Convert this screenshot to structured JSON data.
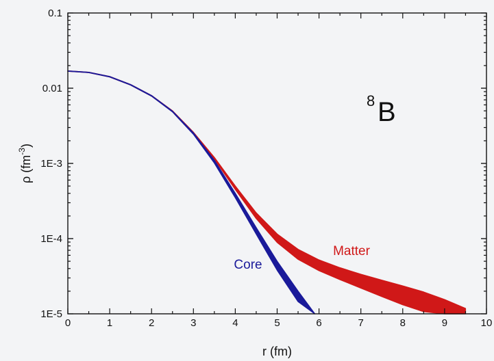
{
  "chart_data": {
    "type": "line",
    "xlabel": "r (fm)",
    "ylabel": {
      "base": "ρ (fm",
      "sup": "-3",
      "close": ")"
    },
    "xlim": [
      0,
      10
    ],
    "ylim": [
      1e-05,
      0.1
    ],
    "yscale": "log",
    "x_ticks": [
      0,
      1,
      2,
      3,
      4,
      5,
      6,
      7,
      8,
      9,
      10
    ],
    "x_tick_labels": [
      "0",
      "1",
      "2",
      "3",
      "4",
      "5",
      "6",
      "7",
      "8",
      "9",
      "10"
    ],
    "y_ticks": [
      1e-05,
      0.0001,
      0.001,
      0.01,
      0.1
    ],
    "y_tick_labels": [
      "1E-5",
      "1E-4",
      "1E-3",
      "0.01",
      "0.1"
    ],
    "grid": false,
    "annotation": {
      "sup": "8",
      "text": "B"
    },
    "series": [
      {
        "name": "Matter",
        "color": "#d01818",
        "band": true,
        "x": [
          0,
          0.5,
          1,
          1.5,
          2,
          2.5,
          3,
          3.5,
          4,
          4.5,
          5,
          5.5,
          6,
          6.5,
          7,
          7.5,
          8,
          8.5,
          9,
          9.5
        ],
        "upper": [
          0.017,
          0.0163,
          0.0143,
          0.0112,
          0.008,
          0.005,
          0.0026,
          0.0012,
          0.0005,
          0.00022,
          0.000115,
          7.2e-05,
          5.2e-05,
          4.1e-05,
          3.35e-05,
          2.8e-05,
          2.35e-05,
          1.95e-05,
          1.55e-05,
          1.18e-05
        ],
        "lower": [
          0.0168,
          0.0161,
          0.0141,
          0.011,
          0.00785,
          0.00488,
          0.00252,
          0.00114,
          0.00045,
          0.000185,
          8.9e-05,
          5.3e-05,
          3.75e-05,
          2.85e-05,
          2.2e-05,
          1.7e-05,
          1.32e-05,
          1.07e-05,
          1e-05,
          1e-05
        ]
      },
      {
        "name": "Core",
        "color": "#1a1a9a",
        "band": true,
        "x": [
          0,
          0.5,
          1,
          1.5,
          2,
          2.5,
          3,
          3.5,
          4,
          4.5,
          5,
          5.5,
          5.9
        ],
        "upper": [
          0.017,
          0.0163,
          0.0143,
          0.0112,
          0.008,
          0.00495,
          0.00255,
          0.0011,
          0.0004,
          0.00014,
          5e-05,
          2e-05,
          1e-05
        ],
        "lower": [
          0.0168,
          0.0161,
          0.0141,
          0.011,
          0.00785,
          0.00484,
          0.00244,
          0.00101,
          0.00035,
          0.000115,
          3.8e-05,
          1.45e-05,
          1e-05
        ]
      }
    ]
  }
}
